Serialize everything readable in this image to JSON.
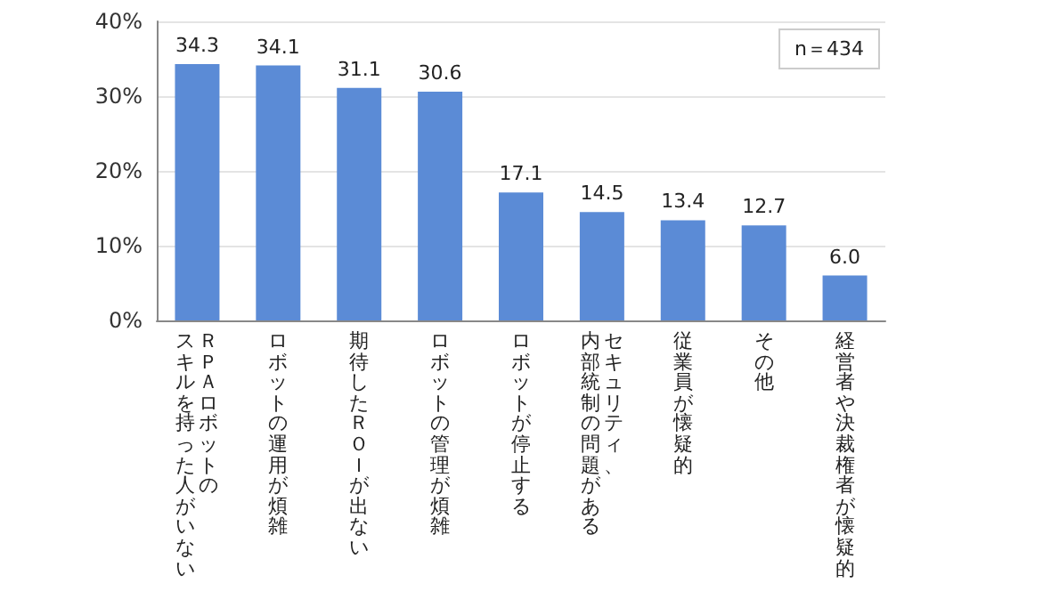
{
  "chart_data": {
    "type": "bar",
    "categories": [
      "ＲＰＡロボットのスキルを持った人がいない",
      "ロボットの運用が煩雑",
      "期待したＲＯＩが出ない",
      "ロボットの管理が煩雑",
      "ロボットが停止する",
      "セキュリティ、内部統制の問題がある",
      "従業員が懐疑的",
      "その他",
      "経営者や決裁権者が懐疑的"
    ],
    "values": [
      34.3,
      34.1,
      31.1,
      30.6,
      17.1,
      14.5,
      13.4,
      12.7,
      6.0
    ],
    "value_labels": [
      "34.3",
      "34.1",
      "31.1",
      "30.6",
      "17.1",
      "14.5",
      "13.4",
      "12.7",
      "6.0"
    ],
    "color": "#5b8bd6",
    "ylim": [
      0,
      40
    ],
    "yticks": [
      {
        "value": 0,
        "label": "0%"
      },
      {
        "value": 10,
        "label": "10%"
      },
      {
        "value": 20,
        "label": "20%"
      },
      {
        "value": 30,
        "label": "30%"
      },
      {
        "value": 40,
        "label": "40%"
      }
    ],
    "grid": "y",
    "annotations": [
      "n＝434"
    ]
  }
}
